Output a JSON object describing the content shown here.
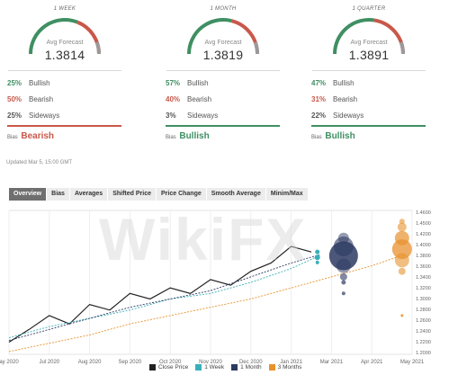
{
  "panels": [
    {
      "period": "1 WEEK",
      "avg_label": "Avg Forecast",
      "avg": "1.3814",
      "gauge_level": 0.62,
      "stats": [
        {
          "pct": "25%",
          "label": "Bullish"
        },
        {
          "pct": "50%",
          "label": "Bearish"
        },
        {
          "pct": "25%",
          "label": "Sideways"
        }
      ],
      "bias_label": "Bias",
      "bias": "Bearish",
      "bias_color": "#c9584a"
    },
    {
      "period": "1 MONTH",
      "avg_label": "Avg Forecast",
      "avg": "1.3819",
      "gauge_level": 0.58,
      "stats": [
        {
          "pct": "57%",
          "label": "Bullish"
        },
        {
          "pct": "40%",
          "label": "Bearish"
        },
        {
          "pct": "3%",
          "label": "Sideways"
        }
      ],
      "bias_label": "Bias",
      "bias": "Bullish",
      "bias_color": "#3f8f62"
    },
    {
      "period": "1 QUARTER",
      "avg_label": "Avg Forecast",
      "avg": "1.3891",
      "gauge_level": 0.55,
      "stats": [
        {
          "pct": "47%",
          "label": "Bullish"
        },
        {
          "pct": "31%",
          "label": "Bearish"
        },
        {
          "pct": "22%",
          "label": "Sideways"
        }
      ],
      "bias_label": "Bias",
      "bias": "Bullish",
      "bias_color": "#3f8f62"
    }
  ],
  "updated": "Updated Mar 5, 15:00 GMT",
  "tabs": [
    "Overview",
    "Bias",
    "Averages",
    "Shifted Price",
    "Price Change",
    "Smooth Average",
    "Minim/Max"
  ],
  "watermark": "WikiFX",
  "colors": {
    "bullish": "#3f8f62",
    "bearish": "#c9584a",
    "close": "#222222",
    "week": "#3aafb9",
    "month": "#2d3a63",
    "months3": "#e8922e"
  },
  "chart_data": {
    "type": "line",
    "x_labels": [
      "ay 2020",
      "Jul 2020",
      "Aug 2020",
      "Sep 2020",
      "Oct 2020",
      "Nov 2020",
      "Dec 2020",
      "Jan 2021",
      "Mar 2021",
      "Apr 2021",
      "May 2021"
    ],
    "y_ticks": [
      "1.4600",
      "1.4500",
      "1.4200",
      "1.4000",
      "1.3800",
      "1.3600",
      "1.3400",
      "1.3200",
      "1.3000",
      "1.2800",
      "1.2600",
      "1.2400",
      "1.2200",
      "1.2000"
    ],
    "series": [
      {
        "name": "Close Price",
        "points": [
          [
            0,
            1.222
          ],
          [
            0.5,
            1.245
          ],
          [
            1,
            1.27
          ],
          [
            1.5,
            1.255
          ],
          [
            2,
            1.29
          ],
          [
            2.5,
            1.28
          ],
          [
            3,
            1.31
          ],
          [
            3.5,
            1.3
          ],
          [
            4,
            1.32
          ],
          [
            4.5,
            1.31
          ],
          [
            5,
            1.335
          ],
          [
            5.5,
            1.325
          ],
          [
            6,
            1.35
          ],
          [
            6.5,
            1.365
          ],
          [
            7,
            1.395
          ],
          [
            7.5,
            1.385
          ]
        ]
      },
      {
        "name": "1 Week",
        "points": [
          [
            0,
            1.23
          ],
          [
            1,
            1.25
          ],
          [
            2,
            1.265
          ],
          [
            3,
            1.28
          ],
          [
            4,
            1.3
          ],
          [
            5,
            1.31
          ],
          [
            6,
            1.33
          ],
          [
            7,
            1.355
          ],
          [
            7.6,
            1.375
          ]
        ]
      },
      {
        "name": "1 Month",
        "points": [
          [
            0,
            1.225
          ],
          [
            1,
            1.245
          ],
          [
            2,
            1.265
          ],
          [
            3,
            1.285
          ],
          [
            4,
            1.3
          ],
          [
            5,
            1.315
          ],
          [
            6,
            1.34
          ],
          [
            7,
            1.365
          ],
          [
            7.7,
            1.38
          ]
        ]
      },
      {
        "name": "3 Months",
        "points": [
          [
            0,
            1.205
          ],
          [
            1,
            1.22
          ],
          [
            2,
            1.235
          ],
          [
            3,
            1.255
          ],
          [
            4,
            1.27
          ],
          [
            5,
            1.285
          ],
          [
            6,
            1.3
          ],
          [
            7,
            1.32
          ],
          [
            8,
            1.34
          ],
          [
            9,
            1.36
          ],
          [
            9.6,
            1.375
          ]
        ]
      }
    ]
  },
  "legend": [
    {
      "label": "Close Price",
      "color": "#222222"
    },
    {
      "label": "1 Week",
      "color": "#3aafb9"
    },
    {
      "label": "1 Month",
      "color": "#2d3a63"
    },
    {
      "label": "3 Months",
      "color": "#e8922e"
    }
  ]
}
